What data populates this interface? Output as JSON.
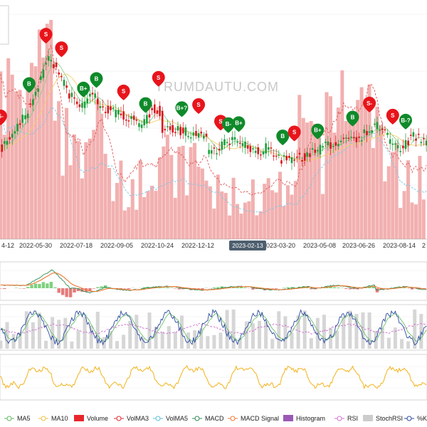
{
  "watermark": "TRUMDAUTU.COM",
  "chart_data": {
    "type": "line",
    "x_tick_labels": [
      "4-12",
      "2022-05-30",
      "2022-07-18",
      "2022-09-05",
      "2022-10-24",
      "2022-12-12",
      "2023-02-13",
      "2023-03-20",
      "2023-05-08",
      "2023-06-26",
      "2023-08-14",
      "2"
    ],
    "crosshair_label": "2023-02-13",
    "legend": [
      {
        "label": "MA5",
        "color": "#5cb85c",
        "kind": "line"
      },
      {
        "label": "MA10",
        "color": "#f0c040",
        "kind": "line"
      },
      {
        "label": "Volume",
        "color": "#e8262b",
        "kind": "box"
      },
      {
        "label": "VolMA3",
        "color": "#e8262b",
        "kind": "line"
      },
      {
        "label": "VolMA5",
        "color": "#5bc0de",
        "kind": "line"
      },
      {
        "label": "MACD",
        "color": "#2e8b57",
        "kind": "line"
      },
      {
        "label": "MACD Signal",
        "color": "#f07830",
        "kind": "line"
      },
      {
        "label": "Histogram",
        "color": "#9b59b6",
        "kind": "box"
      },
      {
        "label": "RSI",
        "color": "#d070d0",
        "kind": "line"
      },
      {
        "label": "StochRSI",
        "color": "#cccccc",
        "kind": "box"
      },
      {
        "label": "%K",
        "color": "#2b4aa0",
        "kind": "line"
      }
    ],
    "signals": [
      {
        "label": "S",
        "type": "sell",
        "i": 35
      },
      {
        "label": "B",
        "type": "buy",
        "i": 22
      },
      {
        "label": "S",
        "type": "sell",
        "i": 47
      },
      {
        "label": "B+",
        "type": "buy",
        "i": 64
      },
      {
        "label": "B",
        "type": "buy",
        "i": 74
      },
      {
        "label": "S",
        "type": "sell",
        "i": 95
      },
      {
        "label": "B",
        "type": "buy",
        "i": 112
      },
      {
        "label": "S",
        "type": "sell",
        "i": 122
      },
      {
        "label": "B+?",
        "type": "buy",
        "i": 140
      },
      {
        "label": "S",
        "type": "sell",
        "i": 153
      },
      {
        "label": "S",
        "type": "sell",
        "i": 170
      },
      {
        "label": "B-",
        "type": "buy",
        "i": 176
      },
      {
        "label": "B+",
        "type": "buy",
        "i": 184
      },
      {
        "label": "B",
        "type": "buy",
        "i": 218
      },
      {
        "label": "S",
        "type": "sell",
        "i": 227
      },
      {
        "label": "B+",
        "type": "buy",
        "i": 245
      },
      {
        "label": "B",
        "type": "buy",
        "i": 272
      },
      {
        "label": "S-",
        "type": "sell",
        "i": 285
      },
      {
        "label": "S",
        "type": "sell",
        "i": 303
      },
      {
        "label": "B-?",
        "type": "buy",
        "i": 313
      },
      {
        "label": "S-",
        "type": "sell",
        "i": 0
      }
    ]
  }
}
